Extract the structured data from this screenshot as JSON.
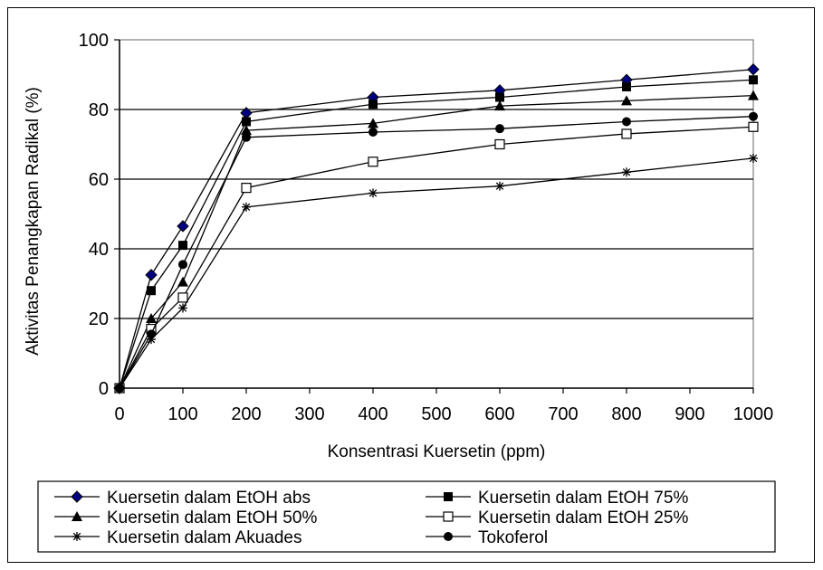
{
  "chart_data": {
    "type": "line",
    "title": "",
    "xlabel": "Konsentrasi Kuersetin (ppm)",
    "ylabel": "Aktivitas Penangkapan Radikal (%)",
    "xlim": [
      0,
      1000
    ],
    "ylim": [
      0,
      100
    ],
    "x_ticks": [
      "0",
      "100",
      "200",
      "300",
      "400",
      "500",
      "600",
      "700",
      "800",
      "900",
      "1000"
    ],
    "y_ticks": [
      "0",
      "20",
      "40",
      "60",
      "80",
      "100"
    ],
    "grid": "horizontal",
    "legend_position": "bottom",
    "series": [
      {
        "name": "Kuersetin dalam EtOH abs",
        "marker": "diamond",
        "color": "#000080",
        "x": [
          0,
          50,
          100,
          200,
          400,
          600,
          800,
          1000
        ],
        "y": [
          0,
          32.5,
          46.5,
          79,
          83.5,
          85.5,
          88.5,
          91.5
        ]
      },
      {
        "name": "Kuersetin dalam EtOH 75%",
        "marker": "square-filled",
        "color": "#000000",
        "x": [
          0,
          50,
          100,
          200,
          400,
          600,
          800,
          1000
        ],
        "y": [
          0,
          28,
          41,
          76.5,
          81.5,
          83.5,
          86.5,
          88.5
        ]
      },
      {
        "name": "Kuersetin dalam EtOH 50%",
        "marker": "triangle",
        "color": "#000000",
        "x": [
          0,
          50,
          100,
          200,
          400,
          600,
          800,
          1000
        ],
        "y": [
          0,
          20,
          30.5,
          74,
          76,
          81,
          82.5,
          84
        ]
      },
      {
        "name": "Kuersetin dalam EtOH 25%",
        "marker": "square-open",
        "color": "#000000",
        "x": [
          0,
          50,
          100,
          200,
          400,
          600,
          800,
          1000
        ],
        "y": [
          0,
          17,
          26,
          57.5,
          65,
          70,
          73,
          75
        ]
      },
      {
        "name": "Kuersetin dalam Akuades",
        "marker": "star",
        "color": "#000000",
        "x": [
          0,
          50,
          100,
          200,
          400,
          600,
          800,
          1000
        ],
        "y": [
          0,
          14,
          23,
          52,
          56,
          58,
          62,
          66
        ]
      },
      {
        "name": "Tokoferol",
        "marker": "circle",
        "color": "#000000",
        "x": [
          0,
          50,
          100,
          200,
          400,
          600,
          800,
          1000
        ],
        "y": [
          0,
          15.5,
          35.5,
          72,
          73.5,
          74.5,
          76.5,
          78
        ]
      }
    ]
  }
}
